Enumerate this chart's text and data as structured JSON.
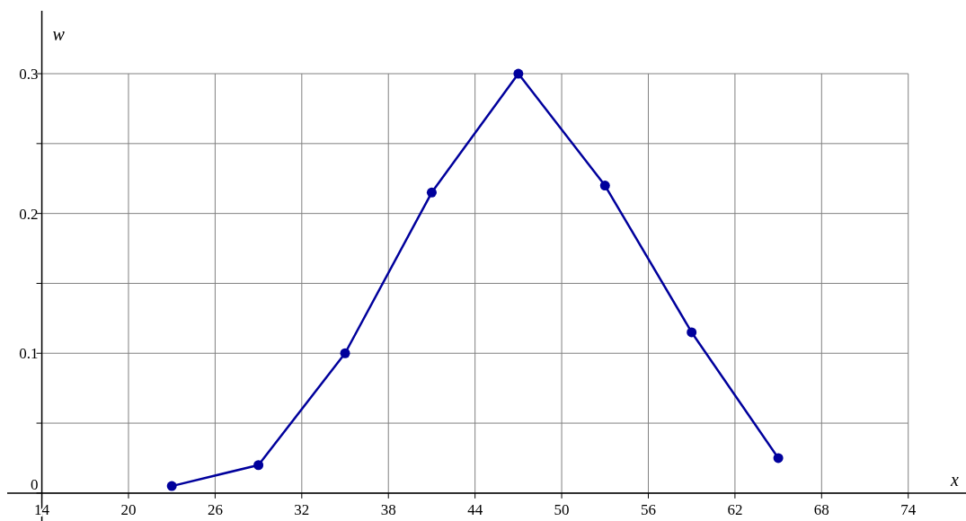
{
  "chart_data": {
    "type": "line",
    "xlabel": "x",
    "ylabel": "w",
    "x": [
      23,
      29,
      35,
      41,
      47,
      53,
      59,
      65
    ],
    "series": [
      {
        "color": "#00009c",
        "values": [
          0.005,
          0.02,
          0.1,
          0.215,
          0.3,
          0.22,
          0.115,
          0.025
        ]
      }
    ],
    "xlim": [
      11.6,
      78
    ],
    "ylim": [
      -0.02,
      0.345
    ],
    "xticks": [
      14,
      20,
      26,
      32,
      38,
      44,
      50,
      56,
      62,
      68,
      74
    ],
    "yticks": [
      0,
      {
        "value": 0.05,
        "label": null
      },
      0.1,
      {
        "value": 0.15,
        "label": null
      },
      0.2,
      {
        "value": 0.25,
        "label": null
      },
      0.3
    ],
    "grid": true,
    "marker": "circle",
    "line_style": "solid"
  }
}
